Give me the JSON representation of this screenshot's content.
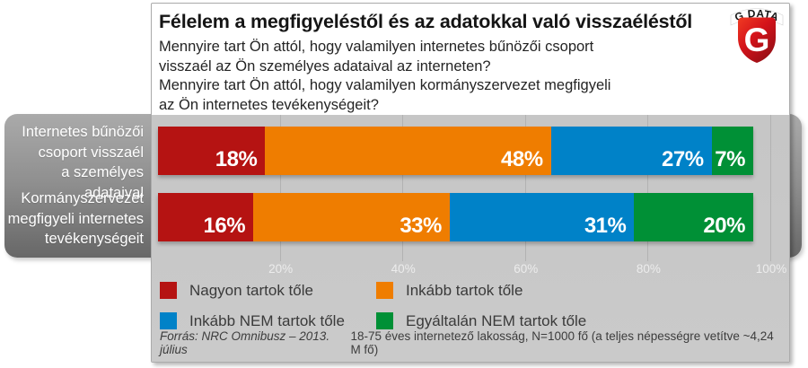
{
  "header": {
    "title": "Félelem a megfigyeléstől és az adatokkal való visszaéléstől",
    "subtitle_lines": [
      "Mennyire tart Ön attól, hogy valamilyen internetes bűnözői csoport",
      "visszaél az Ön személyes adataival az interneten?",
      "Mennyire tart Ön attól, hogy valamilyen kormányszervezet megfigyeli",
      "az Ön internetes tevékenységeit?"
    ],
    "logo": {
      "brand": "G DATA",
      "letter": "G",
      "shield_color": "#d4131a"
    }
  },
  "chart_data": {
    "type": "bar",
    "variant": "horizontal-stacked-100",
    "categories": [
      {
        "label": "Internetes bűnözői csoport visszaél a személyes adataival",
        "lines": [
          "Internetes bűnözői",
          "csoport visszaél",
          "a személyes adataival"
        ]
      },
      {
        "label": "Kormányszervezet megfigyeli internetes tevékenységeit",
        "lines": [
          "Kormányszervezet",
          "megfigyeli internetes",
          "tevékenységeit"
        ]
      }
    ],
    "series": [
      {
        "name": "Nagyon tartok tőle",
        "color": "#b51312",
        "values": [
          18,
          16
        ]
      },
      {
        "name": "Inkább tartok tőle",
        "color": "#ef7d00",
        "values": [
          48,
          33
        ]
      },
      {
        "name": "Inkább NEM tartok tőle",
        "color": "#0082c8",
        "values": [
          27,
          31
        ]
      },
      {
        "name": "Egyáltalán NEM tartok tőle",
        "color": "#009036",
        "values": [
          7,
          20
        ]
      }
    ],
    "value_format": "{v}%",
    "x_axis": {
      "min": 0,
      "max": 100,
      "ticks": [
        20,
        40,
        60,
        80,
        100
      ],
      "tick_format": "{v}%",
      "grid": true
    },
    "legend_position": "bottom"
  },
  "footer": {
    "source": "Forrás: NRC Omnibusz – 2013. július",
    "note": "18-75 éves internetező lakosság, N=1000 fő (a teljes népességre vetítve ~4,24 M fő)"
  }
}
